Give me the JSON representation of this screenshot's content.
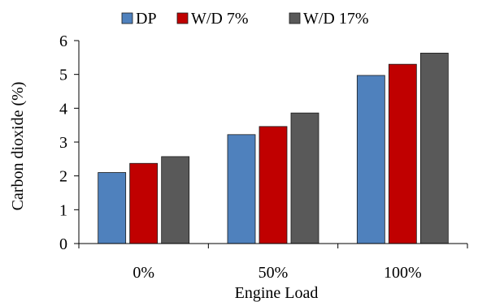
{
  "chart_data": {
    "type": "bar",
    "categories": [
      "0%",
      "50%",
      "100%"
    ],
    "series": [
      {
        "name": "DP",
        "color": "#4f81bd",
        "values": [
          2.1,
          3.22,
          4.97
        ]
      },
      {
        "name": "W/D 7%",
        "color": "#c00000",
        "values": [
          2.37,
          3.46,
          5.3
        ]
      },
      {
        "name": "W/D 17%",
        "color": "#595959",
        "values": [
          2.57,
          3.86,
          5.63
        ]
      }
    ],
    "title": "",
    "xlabel": "Engine Load",
    "ylabel": "Carbon dioxide (%)",
    "ylim": [
      0,
      6
    ],
    "yticks": [
      0,
      1,
      2,
      3,
      4,
      5,
      6
    ],
    "grid": false,
    "legend_position": "top"
  }
}
